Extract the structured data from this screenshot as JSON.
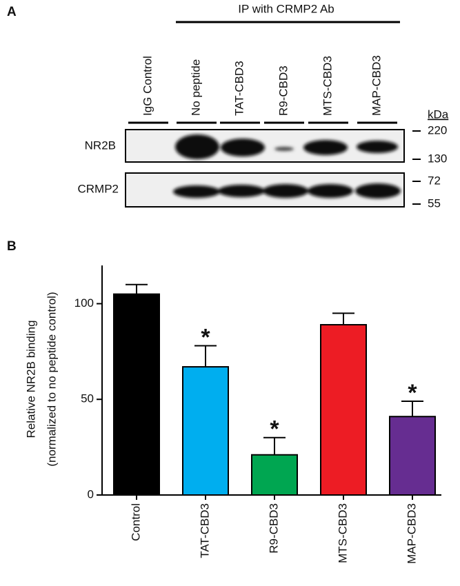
{
  "panel_a": {
    "panel_label": "A",
    "header": "IP with CRMP2 Ab",
    "lanes": [
      "IgG Control",
      "No peptide",
      "TAT-CBD3",
      "R9-CBD3",
      "MTS-CBD3",
      "MAP-CBD3"
    ],
    "rows": [
      "NR2B",
      "CRMP2"
    ],
    "marker_unit": "kDa",
    "markers": [
      "220",
      "130",
      "72",
      "55"
    ]
  },
  "chart_data": {
    "type": "bar",
    "panel_label": "B",
    "y_label": [
      "Relative NR2B binding",
      "(normalized to no peptide control)"
    ],
    "categories": [
      "Control",
      "TAT-CBD3",
      "R9-CBD3",
      "MTS-CBD3",
      "MAP-CBD3"
    ],
    "values": [
      105,
      67,
      21,
      89,
      41
    ],
    "errors": [
      5,
      11,
      9,
      6,
      8
    ],
    "colors": [
      "#000000",
      "#00aeef",
      "#00a651",
      "#ed1c24",
      "#662d91"
    ],
    "annotations": [
      {
        "text": "*",
        "category": "TAT-CBD3"
      },
      {
        "text": "*",
        "category": "R9-CBD3"
      },
      {
        "text": "*",
        "category": "MAP-CBD3"
      }
    ],
    "ylim": [
      0,
      120
    ],
    "yticks": [
      0,
      50,
      100
    ]
  }
}
